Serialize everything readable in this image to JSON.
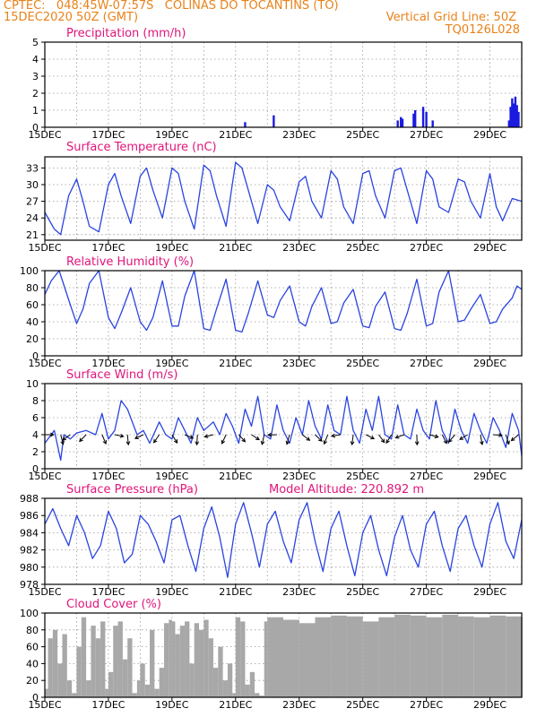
{
  "header": {
    "line1_left": "CPTEC:   048:45W-07:57S   COLINAS DO TOCANTINS (TO)",
    "line2_left": "15DEC2020 50Z (GMT)",
    "line2_right": "Vertical Grid Line: 50Z",
    "line3_right": "TQ0126L028"
  },
  "colors": {
    "header": "#e8821a",
    "panel_title": "#e0157a",
    "line": "#2a44e0",
    "bar": "#1a1ae0",
    "cloud": "#a8a8a8",
    "grid": "#999999"
  },
  "x_ticks": [
    "15DEC",
    "17DEC",
    "19DEC",
    "21DEC",
    "23DEC",
    "25DEC",
    "27DEC",
    "29DEC"
  ],
  "x_tick_days": [
    15,
    17,
    19,
    21,
    23,
    25,
    27,
    29
  ],
  "x_range_days": [
    15,
    30
  ],
  "chart_data": [
    {
      "type": "bar",
      "title": "Precipitation (mm/h)",
      "ylim": [
        0,
        5
      ],
      "yticks": [
        "0",
        "1",
        "2",
        "3",
        "4",
        "5"
      ],
      "ytick_values": [
        0,
        1,
        2,
        3,
        4,
        5
      ],
      "x_days": [
        21.3,
        22.2,
        26.1,
        26.2,
        26.25,
        26.6,
        26.65,
        26.9,
        27.0,
        27.2,
        29.6,
        29.65,
        29.7,
        29.75,
        29.8,
        29.85,
        29.9
      ],
      "values": [
        0.3,
        0.7,
        0.4,
        0.6,
        0.5,
        0.8,
        1.0,
        1.2,
        0.9,
        0.4,
        0.4,
        1.2,
        1.7,
        1.4,
        1.8,
        1.3,
        0.9
      ]
    },
    {
      "type": "line",
      "title": "Surface Temperature (nC)",
      "ylim": [
        20,
        35
      ],
      "yticks": [
        "21",
        "24",
        "27",
        "30",
        "33"
      ],
      "ytick_values": [
        21,
        24,
        27,
        30,
        33
      ],
      "x_days": [
        15.0,
        15.3,
        15.5,
        15.75,
        16.0,
        16.2,
        16.4,
        16.7,
        17.0,
        17.2,
        17.4,
        17.7,
        18.0,
        18.2,
        18.4,
        18.7,
        19.0,
        19.2,
        19.4,
        19.7,
        20.0,
        20.2,
        20.4,
        20.7,
        21.0,
        21.2,
        21.4,
        21.7,
        22.0,
        22.2,
        22.4,
        22.7,
        23.0,
        23.2,
        23.4,
        23.7,
        24.0,
        24.2,
        24.4,
        24.7,
        25.0,
        25.2,
        25.4,
        25.7,
        26.0,
        26.2,
        26.4,
        26.7,
        27.0,
        27.2,
        27.4,
        27.7,
        28.0,
        28.2,
        28.4,
        28.7,
        29.0,
        29.2,
        29.4,
        29.7,
        30.0
      ],
      "values": [
        25.0,
        22.0,
        21.0,
        28.0,
        31.0,
        27.0,
        22.5,
        21.5,
        30.0,
        32.0,
        28.0,
        23.0,
        31.5,
        33.0,
        29.0,
        24.0,
        33.0,
        32.0,
        27.0,
        22.0,
        33.5,
        32.5,
        28.0,
        22.5,
        34.0,
        33.0,
        29.0,
        23.0,
        30.0,
        29.0,
        26.0,
        23.5,
        30.5,
        31.5,
        27.0,
        24.0,
        32.5,
        31.0,
        26.0,
        23.0,
        32.0,
        32.5,
        28.0,
        24.0,
        32.5,
        33.0,
        29.0,
        23.0,
        32.5,
        31.0,
        26.0,
        25.0,
        31.0,
        30.5,
        27.0,
        24.0,
        32.0,
        26.0,
        23.5,
        27.5,
        27.0
      ]
    },
    {
      "type": "line",
      "title": "Relative Humidity (%)",
      "ylim": [
        0,
        100
      ],
      "yticks": [
        "0",
        "20",
        "40",
        "60",
        "80",
        "100"
      ],
      "ytick_values": [
        0,
        20,
        40,
        60,
        80,
        100
      ],
      "x_days": [
        15.0,
        15.2,
        15.45,
        15.8,
        16.0,
        16.2,
        16.4,
        16.7,
        17.0,
        17.2,
        17.4,
        17.7,
        18.0,
        18.2,
        18.4,
        18.7,
        19.0,
        19.2,
        19.4,
        19.7,
        20.0,
        20.2,
        20.4,
        20.7,
        21.0,
        21.2,
        21.4,
        21.7,
        22.0,
        22.2,
        22.4,
        22.7,
        23.0,
        23.2,
        23.4,
        23.7,
        24.0,
        24.2,
        24.4,
        24.7,
        25.0,
        25.2,
        25.4,
        25.7,
        26.0,
        26.2,
        26.4,
        26.7,
        27.0,
        27.2,
        27.4,
        27.7,
        28.0,
        28.2,
        28.4,
        28.7,
        29.0,
        29.2,
        29.4,
        29.7,
        29.85,
        30.0
      ],
      "values": [
        72,
        88,
        100,
        60,
        38,
        55,
        85,
        100,
        45,
        32,
        50,
        80,
        40,
        30,
        45,
        88,
        35,
        35,
        70,
        100,
        32,
        30,
        55,
        90,
        30,
        28,
        50,
        88,
        48,
        45,
        65,
        82,
        40,
        35,
        58,
        80,
        38,
        40,
        62,
        78,
        35,
        33,
        58,
        75,
        32,
        30,
        50,
        90,
        35,
        38,
        75,
        100,
        40,
        42,
        55,
        72,
        38,
        40,
        55,
        68,
        82,
        78
      ]
    },
    {
      "type": "line",
      "title": "Surface Wind (m/s)",
      "ylim": [
        0,
        10
      ],
      "yticks": [
        "0",
        "2",
        "4",
        "6",
        "8",
        "10"
      ],
      "ytick_values": [
        0,
        2,
        4,
        6,
        8,
        10
      ],
      "x_days": [
        15.0,
        15.3,
        15.5,
        15.6,
        15.8,
        16.0,
        16.3,
        16.6,
        16.8,
        17.0,
        17.2,
        17.4,
        17.6,
        17.9,
        18.1,
        18.3,
        18.6,
        18.8,
        19.0,
        19.2,
        19.4,
        19.6,
        19.8,
        20.0,
        20.3,
        20.5,
        20.7,
        20.9,
        21.1,
        21.3,
        21.5,
        21.7,
        21.9,
        22.1,
        22.3,
        22.5,
        22.7,
        22.9,
        23.1,
        23.3,
        23.5,
        23.7,
        23.9,
        24.1,
        24.3,
        24.5,
        24.7,
        24.9,
        25.1,
        25.3,
        25.5,
        25.7,
        25.9,
        26.1,
        26.3,
        26.5,
        26.7,
        26.9,
        27.1,
        27.3,
        27.5,
        27.7,
        27.9,
        28.1,
        28.3,
        28.5,
        28.7,
        28.9,
        29.1,
        29.3,
        29.5,
        29.7,
        29.9,
        30.0
      ],
      "values": [
        3.0,
        4.5,
        1.0,
        4.0,
        3.5,
        4.2,
        4.5,
        4.0,
        6.5,
        3.5,
        4.5,
        8.0,
        7.0,
        4.0,
        4.5,
        3.0,
        5.5,
        4.0,
        3.5,
        6.0,
        4.5,
        3.0,
        6.0,
        4.5,
        5.5,
        4.0,
        6.5,
        5.0,
        3.0,
        7.0,
        5.0,
        8.5,
        4.0,
        3.5,
        7.5,
        4.5,
        3.0,
        6.0,
        4.0,
        8.0,
        5.0,
        3.5,
        7.5,
        4.5,
        4.0,
        8.5,
        4.5,
        3.0,
        7.0,
        4.5,
        8.5,
        4.0,
        3.5,
        7.5,
        4.0,
        3.5,
        7.0,
        4.5,
        3.5,
        8.0,
        4.5,
        3.0,
        7.0,
        4.5,
        3.0,
        6.5,
        4.5,
        3.0,
        6.0,
        4.5,
        2.5,
        6.5,
        4.5,
        1.5
      ]
    },
    {
      "type": "line",
      "title": "Surface Pressure (hPa)",
      "annotation": "Model Altitude: 220.892 m",
      "ylim": [
        978,
        988
      ],
      "yticks": [
        "978",
        "980",
        "982",
        "984",
        "986",
        "988"
      ],
      "ytick_values": [
        978,
        980,
        982,
        984,
        986,
        988
      ],
      "x_days": [
        15.0,
        15.25,
        15.5,
        15.75,
        16.0,
        16.25,
        16.5,
        16.75,
        17.0,
        17.25,
        17.5,
        17.75,
        18.0,
        18.25,
        18.5,
        18.75,
        19.0,
        19.25,
        19.5,
        19.75,
        20.0,
        20.25,
        20.5,
        20.75,
        21.0,
        21.25,
        21.5,
        21.75,
        22.0,
        22.25,
        22.5,
        22.75,
        23.0,
        23.25,
        23.5,
        23.75,
        24.0,
        24.25,
        24.5,
        24.75,
        25.0,
        25.25,
        25.5,
        25.75,
        26.0,
        26.25,
        26.5,
        26.75,
        27.0,
        27.25,
        27.5,
        27.75,
        28.0,
        28.25,
        28.5,
        28.75,
        29.0,
        29.25,
        29.5,
        29.75,
        30.0
      ],
      "values": [
        985.0,
        986.8,
        984.5,
        982.5,
        986.0,
        984.0,
        981.0,
        982.5,
        986.5,
        984.5,
        980.5,
        981.5,
        986.0,
        985.0,
        983.0,
        980.5,
        985.5,
        986.0,
        982.5,
        979.5,
        984.5,
        987.0,
        983.5,
        978.8,
        985.0,
        987.5,
        984.0,
        980.0,
        985.0,
        986.5,
        983.0,
        980.5,
        985.5,
        987.5,
        983.0,
        979.5,
        984.5,
        986.5,
        982.5,
        979.0,
        984.0,
        986.0,
        982.0,
        979.0,
        983.5,
        986.0,
        982.0,
        980.0,
        985.0,
        986.5,
        982.5,
        979.5,
        984.5,
        986.0,
        982.5,
        980.0,
        985.0,
        987.5,
        983.0,
        981.0,
        985.5
      ]
    },
    {
      "type": "area",
      "title": "Cloud Cover (%)",
      "ylim": [
        0,
        100
      ],
      "yticks": [
        "0",
        "20",
        "40",
        "60",
        "80",
        "100"
      ],
      "ytick_values": [
        0,
        20,
        40,
        60,
        80,
        100
      ],
      "x_days": [
        15.0,
        15.1,
        15.25,
        15.4,
        15.55,
        15.7,
        15.85,
        16.0,
        16.15,
        16.3,
        16.45,
        16.6,
        16.75,
        16.9,
        17.0,
        17.15,
        17.3,
        17.45,
        17.6,
        17.75,
        17.9,
        18.0,
        18.15,
        18.3,
        18.45,
        18.6,
        18.75,
        18.9,
        19.0,
        19.1,
        19.25,
        19.4,
        19.55,
        19.7,
        19.85,
        20.0,
        20.15,
        20.3,
        20.45,
        20.6,
        20.75,
        20.9,
        21.0,
        21.15,
        21.3,
        21.45,
        21.6,
        21.75,
        21.9,
        22.0,
        22.5,
        23.0,
        23.5,
        24.0,
        24.5,
        25.0,
        25.5,
        26.0,
        26.5,
        27.0,
        27.5,
        28.0,
        28.5,
        29.0,
        29.5,
        30.0
      ],
      "values": [
        10,
        70,
        80,
        40,
        75,
        20,
        5,
        60,
        95,
        20,
        85,
        70,
        90,
        10,
        30,
        85,
        90,
        45,
        70,
        5,
        20,
        40,
        15,
        80,
        10,
        35,
        88,
        92,
        90,
        75,
        85,
        90,
        40,
        88,
        80,
        92,
        70,
        35,
        60,
        20,
        40,
        5,
        95,
        90,
        15,
        30,
        5,
        2,
        90,
        95,
        92,
        88,
        95,
        97,
        96,
        90,
        95,
        98,
        97,
        95,
        98,
        96,
        95,
        97,
        96,
        95
      ]
    }
  ]
}
